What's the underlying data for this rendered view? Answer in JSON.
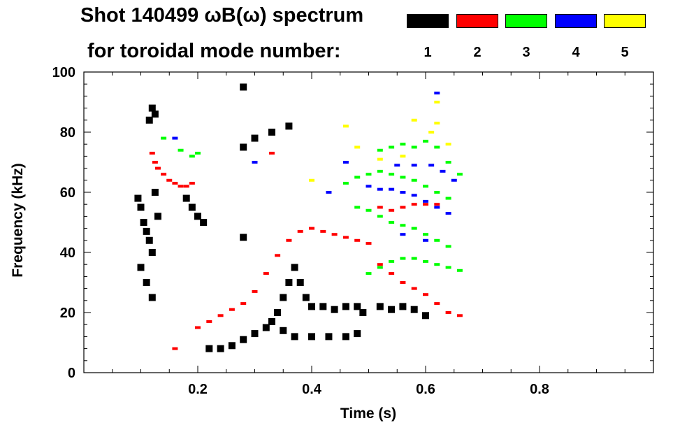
{
  "title": {
    "line1": "Shot 140499 ωB(ω) spectrum",
    "line2": "for toroidal mode number:"
  },
  "legend": [
    {
      "label": "1",
      "color": "#000000"
    },
    {
      "label": "2",
      "color": "#ff0000"
    },
    {
      "label": "3",
      "color": "#00ff00"
    },
    {
      "label": "4",
      "color": "#0000ff"
    },
    {
      "label": "5",
      "color": "#ffff00"
    }
  ],
  "chart_data": {
    "type": "scatter",
    "title": "Shot 140499 ωB(ω) spectrum",
    "subtitle": "for toroidal mode number:",
    "xlabel": "Time (s)",
    "ylabel": "Frequency (kHz)",
    "xlim": [
      0.0,
      1.0
    ],
    "ylim": [
      0,
      100
    ],
    "xticks": [
      0.2,
      0.4,
      0.6,
      0.8
    ],
    "xtick_labels": [
      "0.2",
      "0.4",
      "0.6",
      "0.8"
    ],
    "yticks": [
      0,
      20,
      40,
      60,
      80,
      100
    ],
    "ytick_labels": [
      "0",
      "20",
      "40",
      "60",
      "80",
      "100"
    ],
    "grid": false,
    "legend_position": "top-right",
    "series": [
      {
        "name": "1",
        "color": "#000000",
        "points": [
          [
            0.095,
            58
          ],
          [
            0.1,
            55
          ],
          [
            0.105,
            50
          ],
          [
            0.11,
            47
          ],
          [
            0.115,
            44
          ],
          [
            0.12,
            40
          ],
          [
            0.1,
            35
          ],
          [
            0.11,
            30
          ],
          [
            0.12,
            25
          ],
          [
            0.125,
            60
          ],
          [
            0.13,
            52
          ],
          [
            0.12,
            88
          ],
          [
            0.125,
            86
          ],
          [
            0.115,
            84
          ],
          [
            0.18,
            58
          ],
          [
            0.19,
            55
          ],
          [
            0.2,
            52
          ],
          [
            0.21,
            50
          ],
          [
            0.22,
            8
          ],
          [
            0.24,
            8
          ],
          [
            0.26,
            9
          ],
          [
            0.28,
            11
          ],
          [
            0.3,
            13
          ],
          [
            0.32,
            15
          ],
          [
            0.33,
            17
          ],
          [
            0.34,
            20
          ],
          [
            0.35,
            25
          ],
          [
            0.36,
            30
          ],
          [
            0.37,
            35
          ],
          [
            0.38,
            30
          ],
          [
            0.39,
            25
          ],
          [
            0.4,
            22
          ],
          [
            0.42,
            22
          ],
          [
            0.44,
            21
          ],
          [
            0.46,
            22
          ],
          [
            0.48,
            22
          ],
          [
            0.49,
            20
          ],
          [
            0.52,
            22
          ],
          [
            0.54,
            21
          ],
          [
            0.56,
            22
          ],
          [
            0.58,
            21
          ],
          [
            0.6,
            19
          ],
          [
            0.35,
            14
          ],
          [
            0.37,
            12
          ],
          [
            0.4,
            12
          ],
          [
            0.43,
            12
          ],
          [
            0.46,
            12
          ],
          [
            0.48,
            13
          ],
          [
            0.28,
            95
          ],
          [
            0.28,
            75
          ],
          [
            0.28,
            45
          ],
          [
            0.3,
            78
          ],
          [
            0.33,
            80
          ],
          [
            0.36,
            82
          ]
        ]
      },
      {
        "name": "2",
        "color": "#ff0000",
        "points": [
          [
            0.12,
            73
          ],
          [
            0.125,
            70
          ],
          [
            0.13,
            68
          ],
          [
            0.14,
            66
          ],
          [
            0.15,
            64
          ],
          [
            0.16,
            63
          ],
          [
            0.17,
            62
          ],
          [
            0.18,
            62
          ],
          [
            0.19,
            63
          ],
          [
            0.2,
            15
          ],
          [
            0.22,
            17
          ],
          [
            0.24,
            19
          ],
          [
            0.26,
            21
          ],
          [
            0.28,
            23
          ],
          [
            0.3,
            27
          ],
          [
            0.32,
            33
          ],
          [
            0.34,
            39
          ],
          [
            0.36,
            44
          ],
          [
            0.38,
            47
          ],
          [
            0.4,
            48
          ],
          [
            0.42,
            47
          ],
          [
            0.44,
            46
          ],
          [
            0.46,
            45
          ],
          [
            0.48,
            44
          ],
          [
            0.5,
            43
          ],
          [
            0.52,
            36
          ],
          [
            0.54,
            33
          ],
          [
            0.56,
            30
          ],
          [
            0.58,
            28
          ],
          [
            0.6,
            26
          ],
          [
            0.62,
            23
          ],
          [
            0.64,
            20
          ],
          [
            0.66,
            19
          ],
          [
            0.52,
            55
          ],
          [
            0.54,
            54
          ],
          [
            0.56,
            55
          ],
          [
            0.58,
            56
          ],
          [
            0.6,
            56
          ],
          [
            0.62,
            56
          ],
          [
            0.16,
            8
          ],
          [
            0.33,
            73
          ]
        ]
      },
      {
        "name": "3",
        "color": "#00ff00",
        "points": [
          [
            0.14,
            78
          ],
          [
            0.17,
            74
          ],
          [
            0.19,
            72
          ],
          [
            0.2,
            73
          ],
          [
            0.5,
            33
          ],
          [
            0.52,
            35
          ],
          [
            0.54,
            37
          ],
          [
            0.56,
            38
          ],
          [
            0.58,
            38
          ],
          [
            0.6,
            37
          ],
          [
            0.62,
            36
          ],
          [
            0.64,
            35
          ],
          [
            0.66,
            34
          ],
          [
            0.48,
            55
          ],
          [
            0.5,
            54
          ],
          [
            0.52,
            52
          ],
          [
            0.54,
            50
          ],
          [
            0.56,
            49
          ],
          [
            0.58,
            48
          ],
          [
            0.6,
            46
          ],
          [
            0.62,
            44
          ],
          [
            0.64,
            42
          ],
          [
            0.46,
            63
          ],
          [
            0.48,
            65
          ],
          [
            0.5,
            66
          ],
          [
            0.52,
            67
          ],
          [
            0.54,
            66
          ],
          [
            0.56,
            65
          ],
          [
            0.58,
            64
          ],
          [
            0.6,
            62
          ],
          [
            0.62,
            60
          ],
          [
            0.64,
            58
          ],
          [
            0.52,
            74
          ],
          [
            0.54,
            75
          ],
          [
            0.56,
            76
          ],
          [
            0.58,
            75
          ],
          [
            0.6,
            77
          ],
          [
            0.62,
            75
          ],
          [
            0.64,
            70
          ],
          [
            0.66,
            66
          ]
        ]
      },
      {
        "name": "4",
        "color": "#0000ff",
        "points": [
          [
            0.16,
            78
          ],
          [
            0.3,
            70
          ],
          [
            0.43,
            60
          ],
          [
            0.46,
            70
          ],
          [
            0.5,
            62
          ],
          [
            0.52,
            61
          ],
          [
            0.54,
            61
          ],
          [
            0.56,
            60
          ],
          [
            0.58,
            59
          ],
          [
            0.6,
            57
          ],
          [
            0.62,
            55
          ],
          [
            0.64,
            53
          ],
          [
            0.55,
            69
          ],
          [
            0.58,
            69
          ],
          [
            0.61,
            69
          ],
          [
            0.63,
            67
          ],
          [
            0.65,
            64
          ],
          [
            0.62,
            93
          ],
          [
            0.56,
            46
          ],
          [
            0.6,
            44
          ]
        ]
      },
      {
        "name": "5",
        "color": "#ffff00",
        "points": [
          [
            0.4,
            64
          ],
          [
            0.46,
            82
          ],
          [
            0.52,
            71
          ],
          [
            0.56,
            72
          ],
          [
            0.58,
            84
          ],
          [
            0.61,
            80
          ],
          [
            0.62,
            83
          ],
          [
            0.62,
            90
          ],
          [
            0.64,
            76
          ],
          [
            0.48,
            75
          ]
        ]
      }
    ]
  }
}
